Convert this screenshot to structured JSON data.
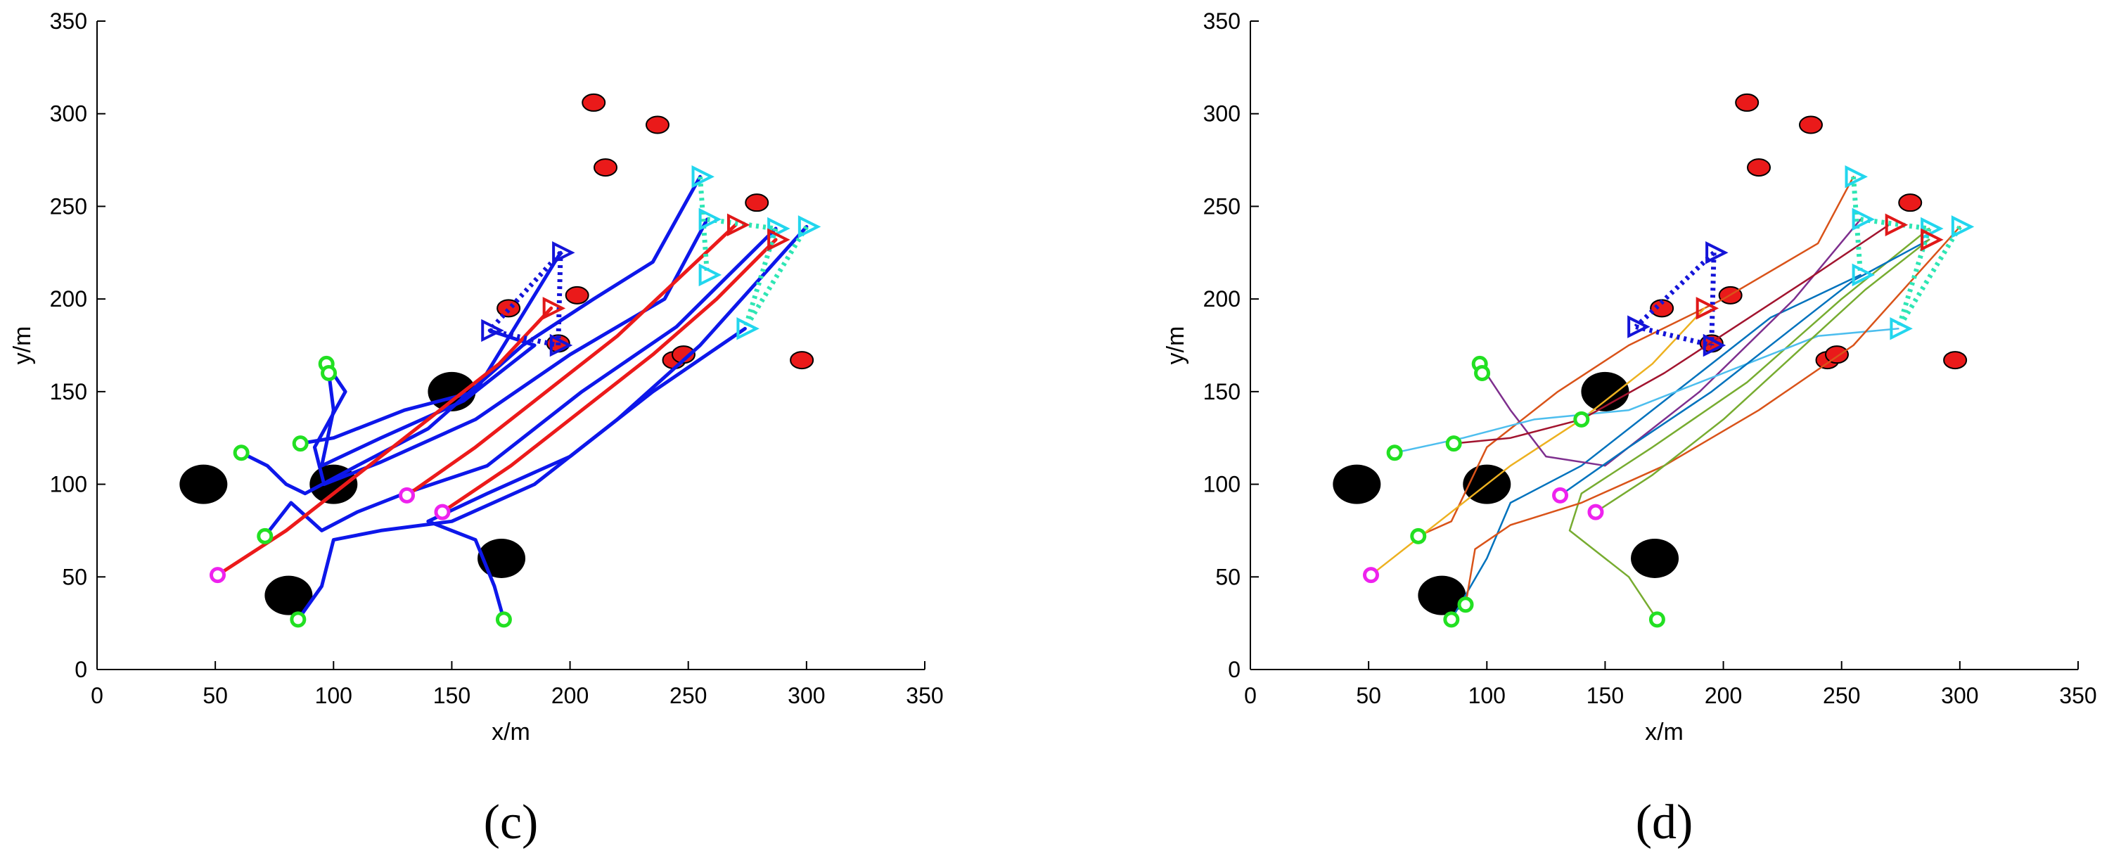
{
  "chart_data": [
    {
      "type": "scatter",
      "panel_label": "(c)",
      "xlabel": "x/m",
      "ylabel": "y/m",
      "xlim": [
        0,
        350
      ],
      "ylim": [
        0,
        350
      ],
      "xticks": [
        0,
        50,
        100,
        150,
        200,
        250,
        300,
        350
      ],
      "yticks": [
        0,
        50,
        100,
        150,
        200,
        250,
        300,
        350
      ],
      "grid": false,
      "obstacles": [
        [
          45,
          100
        ],
        [
          100,
          100
        ],
        [
          150,
          150
        ],
        [
          81,
          40
        ],
        [
          171,
          60
        ]
      ],
      "targets": [
        [
          210,
          306
        ],
        [
          237,
          294
        ],
        [
          215,
          271
        ],
        [
          279,
          252
        ],
        [
          174,
          195
        ],
        [
          203,
          202
        ],
        [
          195,
          176
        ],
        [
          244,
          167
        ],
        [
          248,
          170
        ],
        [
          298,
          167
        ]
      ],
      "start_points_green": [
        [
          97,
          165
        ],
        [
          98,
          160
        ],
        [
          61,
          117
        ],
        [
          86,
          122
        ],
        [
          71,
          72
        ],
        [
          85,
          27
        ],
        [
          172,
          27
        ]
      ],
      "start_points_magenta": [
        [
          51,
          51
        ],
        [
          131,
          94
        ],
        [
          146,
          85
        ]
      ],
      "formation_dark_blue": {
        "triangles": [
          [
            196,
            225
          ],
          [
            166,
            183
          ],
          [
            195,
            175
          ]
        ],
        "dotted_links": [
          [
            [
              196,
              225
            ],
            [
              166,
              183
            ]
          ],
          [
            [
              166,
              183
            ],
            [
              195,
              175
            ]
          ],
          [
            [
              195,
              175
            ],
            [
              196,
              225
            ]
          ]
        ]
      },
      "formation_red": {
        "triangles": [
          [
            192,
            195
          ],
          [
            270,
            240
          ],
          [
            287,
            232
          ]
        ]
      },
      "formation_cyan": {
        "triangles": [
          [
            255,
            266
          ],
          [
            258,
            243
          ],
          [
            258,
            213
          ],
          [
            287,
            238
          ],
          [
            300,
            239
          ],
          [
            274,
            184
          ]
        ],
        "dotted_links": [
          [
            [
              255,
              266
            ],
            [
              258,
              213
            ]
          ],
          [
            [
              258,
              243
            ],
            [
              287,
              238
            ]
          ],
          [
            [
              300,
              239
            ],
            [
              274,
              184
            ]
          ],
          [
            [
              287,
              238
            ],
            [
              274,
              184
            ]
          ]
        ]
      },
      "series": [
        {
          "color": "#0d17ea",
          "points": [
            [
              61,
              117
            ],
            [
              72,
              110
            ],
            [
              80,
              100
            ],
            [
              88,
              95
            ],
            [
              110,
              110
            ],
            [
              140,
              130
            ],
            [
              180,
              175
            ],
            [
              210,
              200
            ],
            [
              235,
              220
            ],
            [
              255,
              266
            ]
          ]
        },
        {
          "color": "#0d17ea",
          "points": [
            [
              97,
              165
            ],
            [
              105,
              150
            ],
            [
              92,
              120
            ],
            [
              96,
              100
            ],
            [
              120,
              112
            ],
            [
              160,
              135
            ],
            [
              200,
              170
            ],
            [
              240,
              200
            ],
            [
              258,
              243
            ]
          ]
        },
        {
          "color": "#0d17ea",
          "points": [
            [
              86,
              122
            ],
            [
              100,
              125
            ],
            [
              130,
              140
            ],
            [
              160,
              150
            ],
            [
              196,
              225
            ]
          ]
        },
        {
          "color": "#0d17ea",
          "points": [
            [
              71,
              72
            ],
            [
              82,
              90
            ],
            [
              95,
              75
            ],
            [
              110,
              85
            ],
            [
              130,
              95
            ],
            [
              165,
              110
            ],
            [
              205,
              150
            ],
            [
              245,
              185
            ],
            [
              287,
              238
            ]
          ]
        },
        {
          "color": "#0d17ea",
          "points": [
            [
              85,
              27
            ],
            [
              95,
              45
            ],
            [
              100,
              70
            ],
            [
              120,
              75
            ],
            [
              150,
              80
            ],
            [
              185,
              100
            ],
            [
              220,
              135
            ],
            [
              255,
              175
            ],
            [
              300,
              239
            ]
          ]
        },
        {
          "color": "#0d17ea",
          "points": [
            [
              172,
              27
            ],
            [
              168,
              45
            ],
            [
              160,
              70
            ],
            [
              140,
              80
            ],
            [
              165,
              95
            ],
            [
              200,
              115
            ],
            [
              235,
              150
            ],
            [
              274,
              184
            ]
          ]
        },
        {
          "color": "#0d17ea",
          "points": [
            [
              98,
              160
            ],
            [
              100,
              140
            ],
            [
              95,
              110
            ],
            [
              120,
              125
            ],
            [
              155,
              145
            ],
            [
              185,
              175
            ],
            [
              166,
              183
            ]
          ]
        },
        {
          "color": "#ec1a1a",
          "points": [
            [
              51,
              51
            ],
            [
              80,
              75
            ],
            [
              110,
              105
            ],
            [
              140,
              135
            ],
            [
              170,
              165
            ],
            [
              192,
              195
            ]
          ]
        },
        {
          "color": "#ec1a1a",
          "points": [
            [
              131,
              94
            ],
            [
              160,
              120
            ],
            [
              190,
              150
            ],
            [
              220,
              180
            ],
            [
              245,
              210
            ],
            [
              270,
              240
            ]
          ]
        },
        {
          "color": "#ec1a1a",
          "points": [
            [
              146,
              85
            ],
            [
              175,
              110
            ],
            [
              205,
              140
            ],
            [
              235,
              170
            ],
            [
              262,
              200
            ],
            [
              287,
              232
            ]
          ]
        }
      ]
    },
    {
      "type": "line",
      "panel_label": "(d)",
      "xlabel": "x/m",
      "ylabel": "y/m",
      "xlim": [
        0,
        350
      ],
      "ylim": [
        0,
        350
      ],
      "xticks": [
        0,
        50,
        100,
        150,
        200,
        250,
        300,
        350
      ],
      "yticks": [
        0,
        50,
        100,
        150,
        200,
        250,
        300,
        350
      ],
      "grid": false,
      "obstacles": [
        [
          45,
          100
        ],
        [
          100,
          100
        ],
        [
          150,
          150
        ],
        [
          81,
          40
        ],
        [
          171,
          60
        ]
      ],
      "targets": [
        [
          210,
          306
        ],
        [
          237,
          294
        ],
        [
          215,
          271
        ],
        [
          279,
          252
        ],
        [
          174,
          195
        ],
        [
          203,
          202
        ],
        [
          195,
          176
        ],
        [
          244,
          167
        ],
        [
          248,
          170
        ],
        [
          298,
          167
        ]
      ],
      "start_points_green": [
        [
          97,
          165
        ],
        [
          98,
          160
        ],
        [
          61,
          117
        ],
        [
          86,
          122
        ],
        [
          71,
          72
        ],
        [
          85,
          27
        ],
        [
          91,
          35
        ],
        [
          140,
          135
        ],
        [
          172,
          27
        ]
      ],
      "start_points_magenta": [
        [
          51,
          51
        ],
        [
          131,
          94
        ],
        [
          146,
          85
        ]
      ],
      "formation_dark_blue": {
        "triangles": [
          [
            196,
            225
          ],
          [
            163,
            185
          ],
          [
            195,
            175
          ]
        ],
        "dotted_links": [
          [
            [
              196,
              225
            ],
            [
              163,
              185
            ]
          ],
          [
            [
              163,
              185
            ],
            [
              195,
              175
            ]
          ],
          [
            [
              196,
              225
            ],
            [
              195,
              175
            ]
          ]
        ]
      },
      "formation_red": {
        "triangles": [
          [
            192,
            195
          ],
          [
            272,
            240
          ],
          [
            287,
            232
          ]
        ]
      },
      "formation_cyan": {
        "triangles": [
          [
            255,
            266
          ],
          [
            258,
            243
          ],
          [
            258,
            213
          ],
          [
            287,
            238
          ],
          [
            300,
            239
          ],
          [
            274,
            184
          ]
        ],
        "dotted_links": [
          [
            [
              255,
              266
            ],
            [
              258,
              213
            ]
          ],
          [
            [
              258,
              243
            ],
            [
              287,
              238
            ]
          ],
          [
            [
              300,
              239
            ],
            [
              274,
              184
            ]
          ],
          [
            [
              287,
              238
            ],
            [
              274,
              184
            ]
          ]
        ]
      },
      "series": [
        {
          "color": "#0072bd",
          "points": [
            [
              85,
              27
            ],
            [
              100,
              60
            ],
            [
              110,
              90
            ],
            [
              140,
              110
            ],
            [
              180,
              150
            ],
            [
              220,
              190
            ],
            [
              258,
              213
            ]
          ]
        },
        {
          "color": "#d95319",
          "points": [
            [
              71,
              72
            ],
            [
              85,
              80
            ],
            [
              100,
              120
            ],
            [
              130,
              150
            ],
            [
              160,
              175
            ],
            [
              200,
              200
            ],
            [
              240,
              230
            ],
            [
              255,
              266
            ]
          ]
        },
        {
          "color": "#edb120",
          "points": [
            [
              51,
              51
            ],
            [
              80,
              80
            ],
            [
              110,
              110
            ],
            [
              140,
              135
            ],
            [
              170,
              165
            ],
            [
              192,
              195
            ]
          ]
        },
        {
          "color": "#7e2f8e",
          "points": [
            [
              97,
              165
            ],
            [
              110,
              140
            ],
            [
              125,
              115
            ],
            [
              150,
              110
            ],
            [
              190,
              150
            ],
            [
              230,
              200
            ],
            [
              258,
              243
            ]
          ]
        },
        {
          "color": "#77ac30",
          "points": [
            [
              172,
              27
            ],
            [
              160,
              50
            ],
            [
              135,
              75
            ],
            [
              140,
              95
            ],
            [
              170,
              120
            ],
            [
              210,
              155
            ],
            [
              250,
              200
            ],
            [
              287,
              238
            ]
          ]
        },
        {
          "color": "#4dbeee",
          "points": [
            [
              61,
              117
            ],
            [
              90,
              125
            ],
            [
              120,
              135
            ],
            [
              160,
              140
            ],
            [
              200,
              160
            ],
            [
              240,
              180
            ],
            [
              274,
              184
            ]
          ]
        },
        {
          "color": "#a2142f",
          "points": [
            [
              86,
              122
            ],
            [
              110,
              125
            ],
            [
              140,
              135
            ],
            [
              175,
              160
            ],
            [
              205,
              185
            ],
            [
              235,
              210
            ],
            [
              270,
              240
            ]
          ]
        },
        {
          "color": "#d95319",
          "points": [
            [
              91,
              35
            ],
            [
              95,
              65
            ],
            [
              110,
              78
            ],
            [
              140,
              90
            ],
            [
              175,
              110
            ],
            [
              215,
              140
            ],
            [
              255,
              175
            ],
            [
              300,
              239
            ]
          ]
        },
        {
          "color": "#0072bd",
          "points": [
            [
              131,
              94
            ],
            [
              160,
              120
            ],
            [
              195,
              150
            ],
            [
              225,
              180
            ],
            [
              255,
              210
            ],
            [
              287,
              232
            ]
          ]
        },
        {
          "color": "#77ac30",
          "points": [
            [
              146,
              85
            ],
            [
              170,
              105
            ],
            [
              200,
              135
            ],
            [
              230,
              170
            ],
            [
              260,
              205
            ],
            [
              287,
              232
            ]
          ]
        }
      ]
    }
  ]
}
